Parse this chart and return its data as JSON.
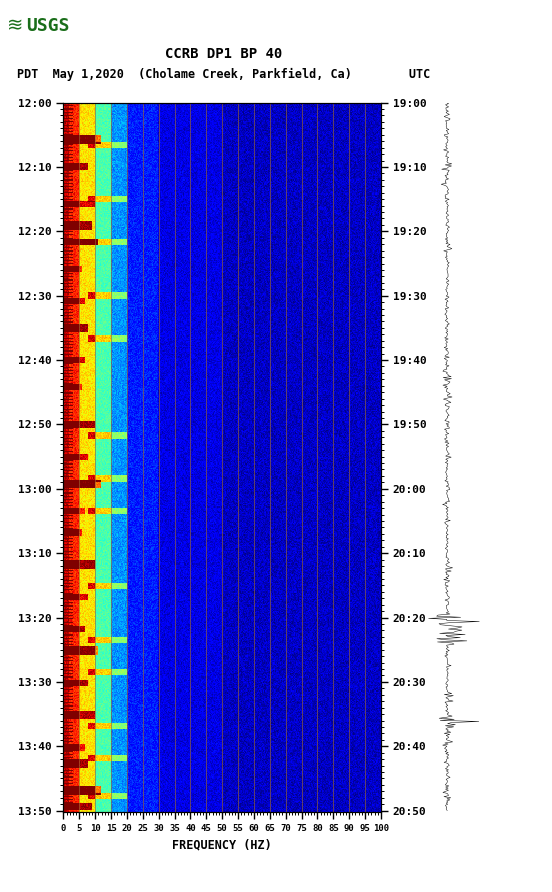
{
  "title_line1": "CCRB DP1 BP 40",
  "title_line2": "PDT  May 1,2020  (Cholame Creek, Parkfield, Ca)        UTC",
  "xlabel": "FREQUENCY (HZ)",
  "freq_min": 0,
  "freq_max": 100,
  "freq_ticks": [
    0,
    5,
    10,
    15,
    20,
    25,
    30,
    35,
    40,
    45,
    50,
    55,
    60,
    65,
    70,
    75,
    80,
    85,
    90,
    95,
    100
  ],
  "yticks_pdt": [
    "12:00",
    "12:10",
    "12:20",
    "12:30",
    "12:40",
    "12:50",
    "13:00",
    "13:10",
    "13:20",
    "13:30",
    "13:40",
    "13:50"
  ],
  "yticks_utc": [
    "19:00",
    "19:10",
    "19:20",
    "19:30",
    "19:40",
    "19:50",
    "20:00",
    "20:10",
    "20:20",
    "20:30",
    "20:40",
    "20:50"
  ],
  "n_time_bins": 660,
  "n_freq_bins": 500,
  "background_color": "#ffffff",
  "cmap": "jet",
  "vertical_lines_freq": [
    5,
    10,
    15,
    20,
    25,
    30,
    35,
    40,
    45,
    50,
    55,
    60,
    65,
    70,
    75,
    80,
    85,
    90,
    95,
    100
  ],
  "vline_color": "#996633",
  "figure_width": 5.52,
  "figure_height": 8.92
}
